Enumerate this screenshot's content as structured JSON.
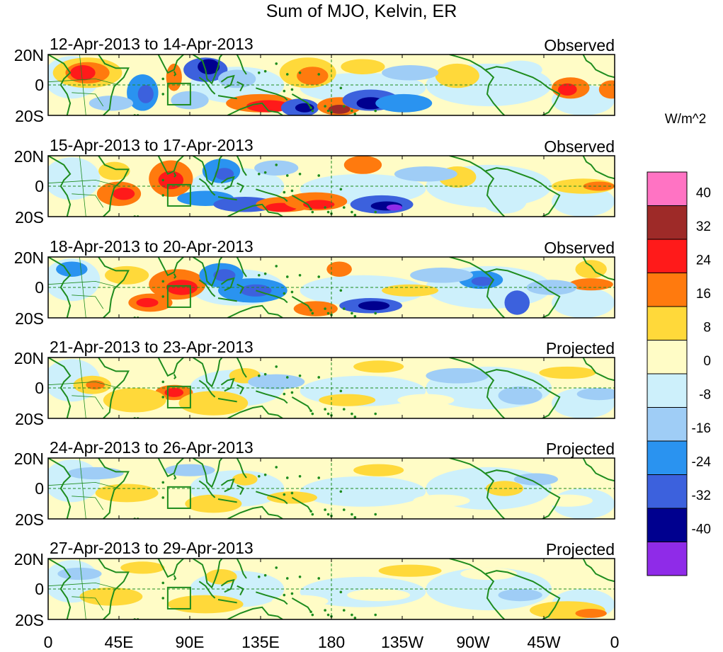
{
  "title": "Sum of MJO, Kelvin, ER",
  "colorbar": {
    "units": "W/m^2",
    "labels": [
      "40",
      "32",
      "24",
      "16",
      "8",
      "0",
      "-8",
      "-16",
      "-24",
      "-32",
      "-40"
    ],
    "colors": [
      "#ff73c3",
      "#9e2a28",
      "#ff1a1a",
      "#ff7a0e",
      "#ffd93a",
      "#fffcc6",
      "#cdf0fb",
      "#9fcdf6",
      "#2a93f0",
      "#3c61dd",
      "#00008f",
      "#8f2be8"
    ]
  },
  "y_ticks": [
    "20N",
    "0",
    "20S"
  ],
  "x_ticks": [
    "0",
    "45E",
    "90E",
    "135E",
    "180",
    "135W",
    "90W",
    "45W",
    "0"
  ],
  "panels": [
    {
      "dates": "12-Apr-2013 to 14-Apr-2013",
      "status": "Observed"
    },
    {
      "dates": "15-Apr-2013 to 17-Apr-2013",
      "status": "Observed"
    },
    {
      "dates": "18-Apr-2013 to 20-Apr-2013",
      "status": "Observed"
    },
    {
      "dates": "21-Apr-2013 to 23-Apr-2013",
      "status": "Projected"
    },
    {
      "dates": "24-Apr-2013 to 26-Apr-2013",
      "status": "Projected"
    },
    {
      "dates": "27-Apr-2013 to 29-Apr-2013",
      "status": "Projected"
    }
  ],
  "map_extent": {
    "lon_range": [
      0,
      360
    ],
    "lat_range": [
      -20,
      20
    ]
  },
  "colors": {
    "coastline": "#1e8c1e",
    "frame": "#000000",
    "dashed_lines": "#1e8c1e"
  }
}
